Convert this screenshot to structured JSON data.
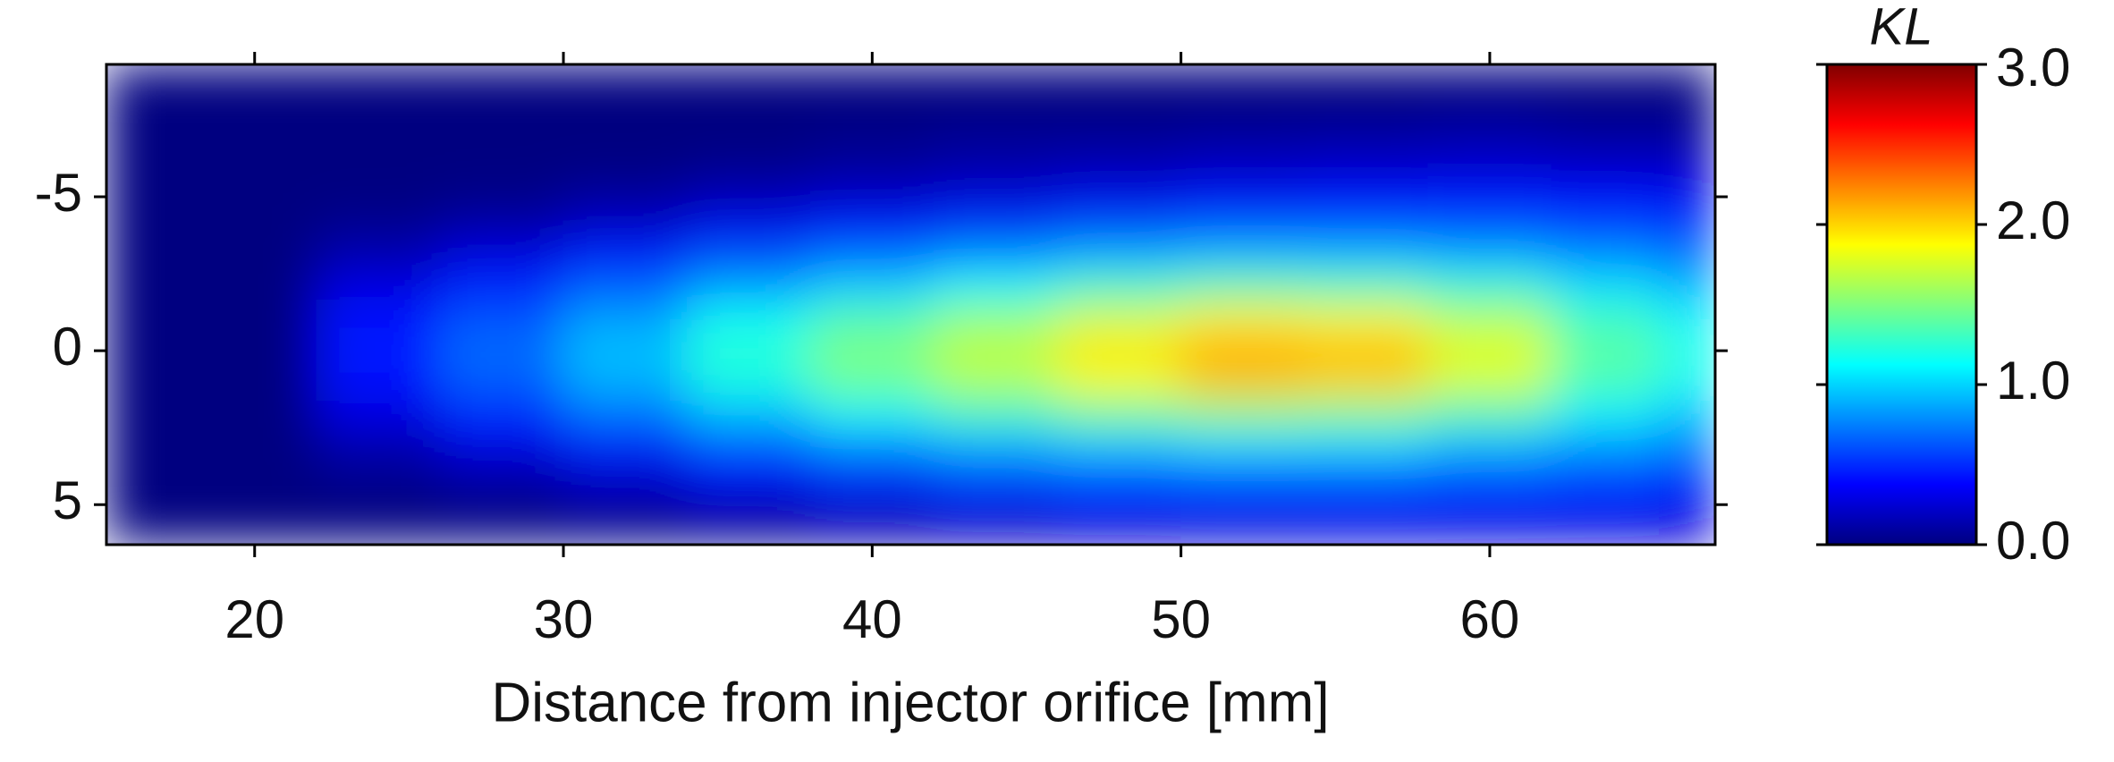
{
  "chart_data": {
    "type": "heatmap",
    "x_label": "Distance from injector orifice [mm]",
    "x": [
      16,
      20,
      24,
      28,
      32,
      36,
      40,
      44,
      48,
      52,
      56,
      60,
      64,
      67
    ],
    "y": [
      -9,
      -8,
      -7,
      -6,
      -5,
      -4,
      -3,
      -2,
      -1,
      0,
      1,
      2,
      3,
      4,
      5,
      6
    ],
    "z": [
      [
        0,
        0,
        0,
        0,
        0,
        0,
        0,
        0,
        0,
        0,
        0,
        0,
        0,
        0
      ],
      [
        0,
        0,
        0,
        0,
        0,
        0,
        0,
        0,
        0,
        0,
        0,
        0.02,
        0,
        0
      ],
      [
        0,
        0,
        0,
        0,
        0,
        0,
        0.02,
        0.05,
        0.05,
        0.08,
        0.1,
        0.12,
        0.08,
        0.08
      ],
      [
        0,
        0,
        0,
        0,
        0,
        0.03,
        0.08,
        0.12,
        0.15,
        0.18,
        0.2,
        0.22,
        0.2,
        0.2
      ],
      [
        0,
        0,
        0,
        0.02,
        0.08,
        0.15,
        0.2,
        0.25,
        0.3,
        0.35,
        0.38,
        0.4,
        0.38,
        0.35
      ],
      [
        0,
        0,
        0.05,
        0.12,
        0.22,
        0.32,
        0.42,
        0.5,
        0.55,
        0.6,
        0.6,
        0.58,
        0.55,
        0.5
      ],
      [
        0,
        0,
        0.15,
        0.3,
        0.45,
        0.6,
        0.7,
        0.8,
        0.9,
        0.95,
        0.95,
        0.9,
        0.8,
        0.7
      ],
      [
        0,
        0,
        0.3,
        0.48,
        0.65,
        0.85,
        1.0,
        1.15,
        1.3,
        1.4,
        1.35,
        1.25,
        1.05,
        0.9
      ],
      [
        0,
        0,
        0.4,
        0.62,
        0.85,
        1.15,
        1.35,
        1.55,
        1.75,
        1.9,
        1.85,
        1.65,
        1.3,
        1.1
      ],
      [
        0,
        0,
        0.45,
        0.7,
        0.95,
        1.25,
        1.5,
        1.7,
        1.95,
        2.15,
        2.1,
        1.8,
        1.4,
        1.2
      ],
      [
        0,
        0,
        0.4,
        0.65,
        0.9,
        1.2,
        1.45,
        1.65,
        1.85,
        2.05,
        2.0,
        1.75,
        1.35,
        1.15
      ],
      [
        0,
        0,
        0.3,
        0.5,
        0.72,
        0.95,
        1.15,
        1.3,
        1.45,
        1.55,
        1.5,
        1.35,
        1.1,
        0.95
      ],
      [
        0,
        0,
        0.15,
        0.32,
        0.48,
        0.65,
        0.8,
        0.92,
        1.0,
        1.05,
        1.05,
        0.95,
        0.85,
        0.75
      ],
      [
        0,
        0,
        0.05,
        0.12,
        0.25,
        0.38,
        0.5,
        0.58,
        0.62,
        0.65,
        0.65,
        0.62,
        0.58,
        0.5
      ],
      [
        0,
        0,
        0,
        0.03,
        0.08,
        0.15,
        0.25,
        0.32,
        0.38,
        0.4,
        0.42,
        0.42,
        0.4,
        0.35
      ],
      [
        0,
        0,
        0,
        0,
        0.02,
        0.05,
        0.1,
        0.15,
        0.2,
        0.22,
        0.25,
        0.25,
        0.25,
        0.22
      ]
    ],
    "xlim": [
      15.2,
      67.3
    ],
    "xticks": [
      20,
      30,
      40,
      50,
      60
    ],
    "ylim": [
      -9.3,
      6.3
    ],
    "yticks": [
      -5,
      0,
      5
    ],
    "y_inverted": true,
    "colormap": "jet",
    "colorbar": {
      "label": "KL",
      "lim": [
        0,
        3
      ],
      "ticks": [
        {
          "value": 0,
          "label": "0.0"
        },
        {
          "value": 1,
          "label": "1.0"
        },
        {
          "value": 2,
          "label": "2.0"
        },
        {
          "value": 3,
          "label": "3.0"
        }
      ]
    }
  }
}
